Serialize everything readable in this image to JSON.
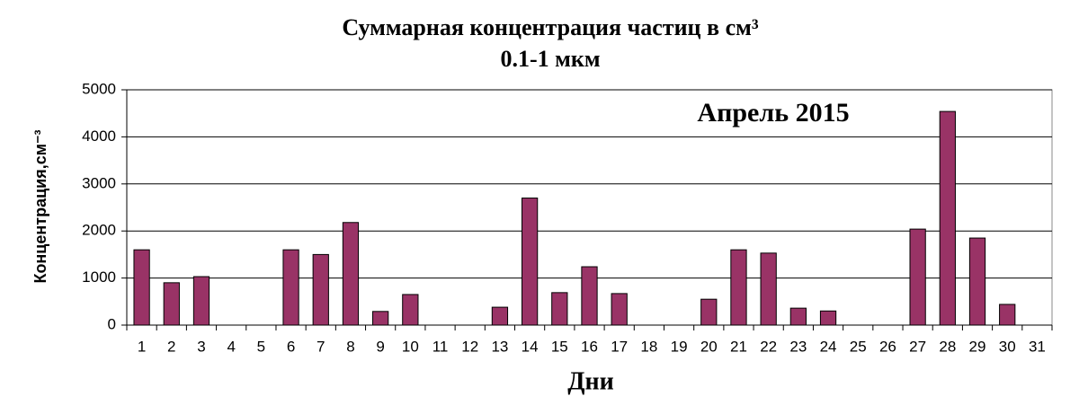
{
  "chart_data": {
    "type": "bar",
    "title": "Суммарная концентрация частиц в см³",
    "subtitle": "0.1-1 мкм",
    "annotation": "Апрель 2015",
    "x_label": "Дни",
    "y_label": "Концентрация,см⁻³",
    "categories": [
      "1",
      "2",
      "3",
      "4",
      "5",
      "6",
      "7",
      "8",
      "9",
      "10",
      "11",
      "12",
      "13",
      "14",
      "15",
      "16",
      "17",
      "18",
      "19",
      "20",
      "21",
      "22",
      "23",
      "24",
      "25",
      "26",
      "27",
      "28",
      "29",
      "30",
      "31"
    ],
    "values": [
      1600,
      900,
      1030,
      0,
      0,
      1600,
      1500,
      2180,
      290,
      650,
      0,
      0,
      380,
      2700,
      690,
      1240,
      670,
      0,
      0,
      550,
      1600,
      1530,
      360,
      300,
      0,
      0,
      2040,
      4540,
      1850,
      440,
      0
    ],
    "color": "#993366",
    "ylim": [
      0,
      5000
    ],
    "yticks": [
      0,
      1000,
      2000,
      3000,
      4000,
      5000
    ],
    "grid": true
  }
}
